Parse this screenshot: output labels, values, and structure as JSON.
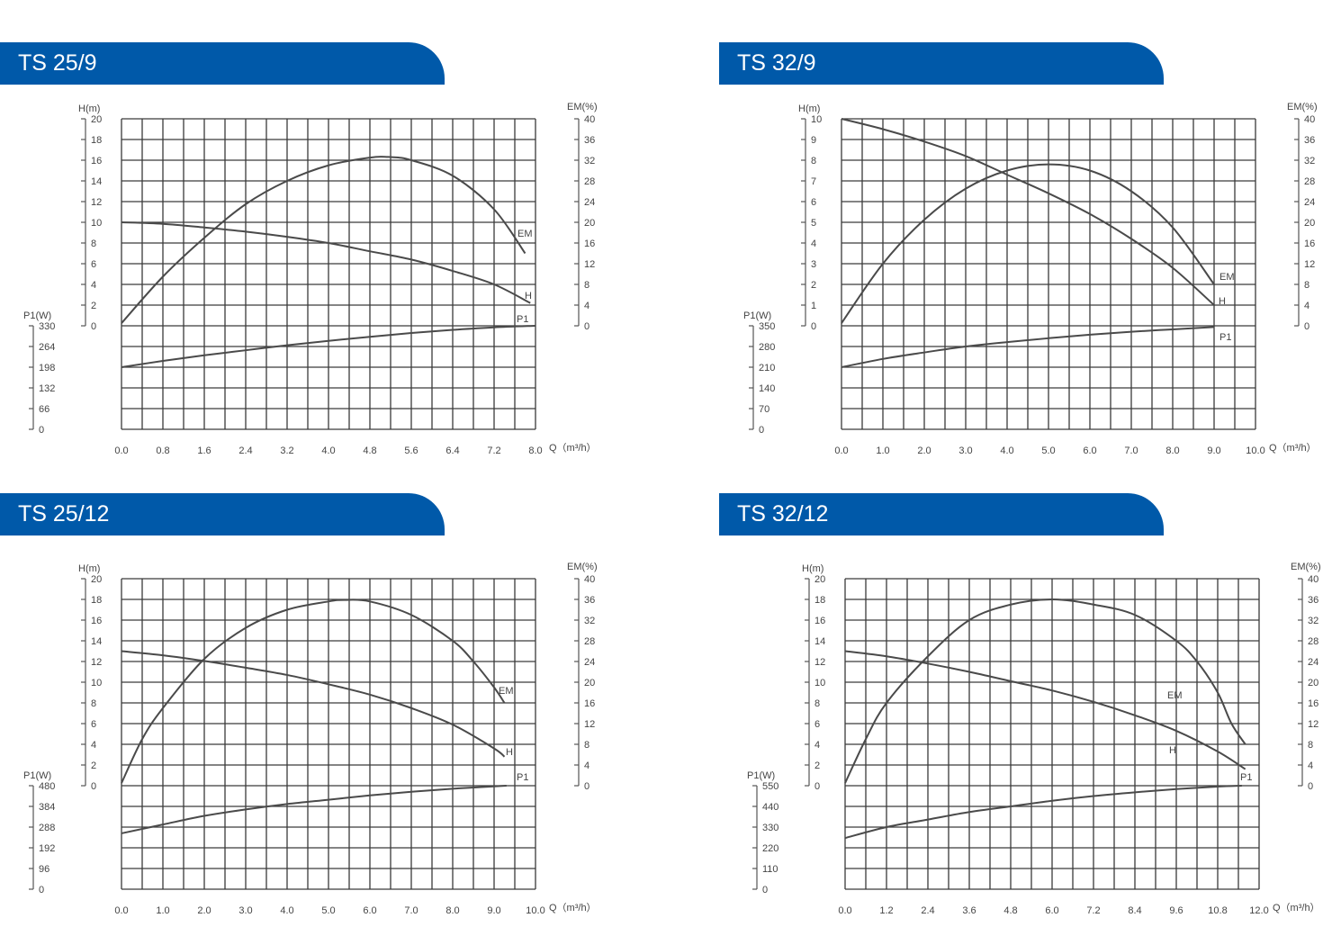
{
  "chart_data": [
    {
      "type": "line",
      "title": "TS 25/9",
      "xlabel": "Q（m³/h）",
      "xlim": [
        0,
        8
      ],
      "x_ticks": [
        "0.0",
        "0.8",
        "1.6",
        "2.4",
        "3.2",
        "4.0",
        "4.8",
        "5.6",
        "6.4",
        "7.2",
        "8.0"
      ],
      "axes": {
        "H": {
          "label": "H(m)",
          "range": [
            0,
            20
          ],
          "ticks": [
            "20",
            "18",
            "16",
            "14",
            "12",
            "10",
            "8",
            "6",
            "4",
            "2",
            "0"
          ]
        },
        "EM": {
          "label": "EM(%)",
          "range": [
            0,
            40
          ],
          "ticks": [
            "40",
            "36",
            "32",
            "28",
            "24",
            "20",
            "16",
            "12",
            "8",
            "4",
            "0"
          ]
        },
        "P1": {
          "label": "P1(W)",
          "range": [
            0,
            330
          ],
          "ticks": [
            "330",
            "264",
            "198",
            "132",
            "66",
            "0"
          ]
        }
      },
      "grid": true,
      "series": [
        {
          "name": "H",
          "axis": "H",
          "points": [
            [
              0,
              10
            ],
            [
              0.8,
              9.85
            ],
            [
              1.6,
              9.5
            ],
            [
              2.4,
              9.1
            ],
            [
              3.2,
              8.6
            ],
            [
              4.0,
              8.0
            ],
            [
              4.8,
              7.2
            ],
            [
              5.6,
              6.4
            ],
            [
              6.4,
              5.3
            ],
            [
              7.2,
              4.0
            ],
            [
              7.9,
              2.2
            ]
          ]
        },
        {
          "name": "EM",
          "axis": "EM",
          "points": [
            [
              0,
              0.5
            ],
            [
              0.8,
              9.5
            ],
            [
              1.6,
              17
            ],
            [
              2.4,
              23.5
            ],
            [
              3.2,
              28
            ],
            [
              4.0,
              31
            ],
            [
              4.8,
              32.5
            ],
            [
              5.2,
              32.6
            ],
            [
              5.6,
              32
            ],
            [
              6.4,
              29
            ],
            [
              7.2,
              22.5
            ],
            [
              7.8,
              14
            ]
          ]
        },
        {
          "name": "P1",
          "axis": "P1",
          "points": [
            [
              0,
              198
            ],
            [
              0.8,
              218
            ],
            [
              1.6,
              236
            ],
            [
              2.4,
              252
            ],
            [
              3.2,
              268
            ],
            [
              4.0,
              282
            ],
            [
              4.8,
              295
            ],
            [
              5.6,
              307
            ],
            [
              6.4,
              317
            ],
            [
              7.2,
              325
            ],
            [
              8.0,
              330
            ]
          ]
        }
      ]
    },
    {
      "type": "line",
      "title": "TS 32/9",
      "xlabel": "Q（m³/h）",
      "xlim": [
        0,
        10
      ],
      "x_ticks": [
        "0.0",
        "1.0",
        "2.0",
        "3.0",
        "4.0",
        "5.0",
        "6.0",
        "7.0",
        "8.0",
        "9.0",
        "10.0"
      ],
      "axes": {
        "H": {
          "label": "H(m)",
          "range": [
            0,
            10
          ],
          "ticks": [
            "10",
            "9",
            "8",
            "7",
            "6",
            "5",
            "4",
            "3",
            "2",
            "1",
            "0"
          ]
        },
        "EM": {
          "label": "EM(%)",
          "range": [
            0,
            40
          ],
          "ticks": [
            "40",
            "36",
            "32",
            "28",
            "24",
            "20",
            "16",
            "12",
            "8",
            "4",
            "0"
          ]
        },
        "P1": {
          "label": "P1(W)",
          "range": [
            0,
            350
          ],
          "ticks": [
            "350",
            "280",
            "210",
            "140",
            "70",
            "0"
          ]
        }
      },
      "grid": true,
      "series": [
        {
          "name": "H",
          "axis": "H",
          "points": [
            [
              0,
              10
            ],
            [
              1,
              9.5
            ],
            [
              2,
              8.9
            ],
            [
              3,
              8.2
            ],
            [
              4,
              7.3
            ],
            [
              5,
              6.4
            ],
            [
              6,
              5.4
            ],
            [
              7,
              4.2
            ],
            [
              8,
              2.8
            ],
            [
              9,
              1
            ]
          ]
        },
        {
          "name": "EM",
          "axis": "EM",
          "points": [
            [
              0,
              0.5
            ],
            [
              1,
              12
            ],
            [
              2,
              20.5
            ],
            [
              3,
              26.5
            ],
            [
              4,
              30
            ],
            [
              5,
              31.2
            ],
            [
              6,
              30
            ],
            [
              7,
              26
            ],
            [
              8,
              19
            ],
            [
              9,
              8
            ]
          ]
        },
        {
          "name": "P1",
          "axis": "P1",
          "points": [
            [
              0,
              210
            ],
            [
              1,
              238
            ],
            [
              2,
              260
            ],
            [
              3,
              280
            ],
            [
              4,
              295
            ],
            [
              5,
              308
            ],
            [
              6,
              320
            ],
            [
              7,
              330
            ],
            [
              8,
              338
            ],
            [
              9,
              346
            ]
          ]
        }
      ]
    },
    {
      "type": "line",
      "title": "TS 25/12",
      "xlabel": "Q（m³/h）",
      "xlim": [
        0,
        10
      ],
      "x_ticks": [
        "0.0",
        "1.0",
        "2.0",
        "3.0",
        "4.0",
        "5.0",
        "6.0",
        "7.0",
        "8.0",
        "9.0",
        "10.0"
      ],
      "axes": {
        "H": {
          "label": "H(m)",
          "range": [
            0,
            20
          ],
          "ticks": [
            "20",
            "18",
            "16",
            "14",
            "12",
            "10",
            "8",
            "6",
            "4",
            "2",
            "0"
          ]
        },
        "EM": {
          "label": "EM(%)",
          "range": [
            0,
            40
          ],
          "ticks": [
            "40",
            "36",
            "32",
            "28",
            "24",
            "20",
            "16",
            "12",
            "8",
            "4",
            "0"
          ]
        },
        "P1": {
          "label": "P1(W)",
          "range": [
            0,
            480
          ],
          "ticks": [
            "480",
            "384",
            "288",
            "192",
            "96",
            "0"
          ]
        }
      },
      "grid": true,
      "series": [
        {
          "name": "H",
          "axis": "H",
          "points": [
            [
              0,
              13
            ],
            [
              1,
              12.6
            ],
            [
              2,
              12.05
            ],
            [
              3,
              11.4
            ],
            [
              4,
              10.7
            ],
            [
              5,
              9.8
            ],
            [
              6,
              8.8
            ],
            [
              7,
              7.5
            ],
            [
              8,
              5.9
            ],
            [
              9,
              3.6
            ],
            [
              9.25,
              2.8
            ]
          ]
        },
        {
          "name": "EM",
          "axis": "EM",
          "points": [
            [
              0,
              0.5
            ],
            [
              0.5,
              9
            ],
            [
              1,
              15
            ],
            [
              2,
              24.5
            ],
            [
              3,
              30.5
            ],
            [
              4,
              34
            ],
            [
              5,
              35.6
            ],
            [
              5.4,
              35.9
            ],
            [
              6,
              35.6
            ],
            [
              7,
              33
            ],
            [
              8,
              28
            ],
            [
              8.5,
              24
            ],
            [
              9,
              19
            ],
            [
              9.25,
              16
            ]
          ]
        },
        {
          "name": "P1",
          "axis": "P1",
          "points": [
            [
              0,
              259
            ],
            [
              1,
              300
            ],
            [
              2,
              340
            ],
            [
              3,
              370
            ],
            [
              4,
              395
            ],
            [
              5,
              415
            ],
            [
              6,
              435
            ],
            [
              7,
              452
            ],
            [
              8,
              466
            ],
            [
              9,
              477
            ],
            [
              9.3,
              480
            ]
          ]
        }
      ]
    },
    {
      "type": "line",
      "title": "TS 32/12",
      "xlabel": "Q（m³/h）",
      "xlim": [
        0,
        12
      ],
      "x_ticks": [
        "0.0",
        "1.2",
        "2.4",
        "3.6",
        "4.8",
        "6.0",
        "7.2",
        "8.4",
        "9.6",
        "10.8",
        "12.0"
      ],
      "axes": {
        "H": {
          "label": "H(m)",
          "range": [
            0,
            20
          ],
          "ticks": [
            "20",
            "18",
            "16",
            "14",
            "12",
            "10",
            "8",
            "6",
            "4",
            "2",
            "0"
          ]
        },
        "EM": {
          "label": "EM(%)",
          "range": [
            0,
            40
          ],
          "ticks": [
            "40",
            "36",
            "32",
            "28",
            "24",
            "20",
            "16",
            "12",
            "8",
            "4",
            "0"
          ]
        },
        "P1": {
          "label": "P1(W)",
          "range": [
            0,
            550
          ],
          "ticks": [
            "550",
            "440",
            "330",
            "220",
            "110",
            "0"
          ]
        }
      },
      "grid": true,
      "series": [
        {
          "name": "H",
          "axis": "H",
          "points": [
            [
              0,
              13
            ],
            [
              1.2,
              12.5
            ],
            [
              2.4,
              11.8
            ],
            [
              3.6,
              11
            ],
            [
              4.8,
              10.1
            ],
            [
              6,
              9.2
            ],
            [
              7.2,
              8.1
            ],
            [
              8.4,
              6.8
            ],
            [
              9.6,
              5.3
            ],
            [
              10.8,
              3.3
            ],
            [
              11.6,
              1.6
            ]
          ]
        },
        {
          "name": "EM",
          "axis": "EM",
          "points": [
            [
              0,
              0.5
            ],
            [
              0.6,
              9
            ],
            [
              1.2,
              16
            ],
            [
              2.4,
              25
            ],
            [
              3.6,
              32
            ],
            [
              4.8,
              35
            ],
            [
              6,
              36
            ],
            [
              7.2,
              35
            ],
            [
              8.4,
              33
            ],
            [
              9.6,
              28
            ],
            [
              10.2,
              24
            ],
            [
              10.8,
              18
            ],
            [
              11.2,
              12
            ],
            [
              11.6,
              8
            ]
          ]
        },
        {
          "name": "P1",
          "axis": "P1",
          "points": [
            [
              0,
              272
            ],
            [
              1.2,
              330
            ],
            [
              2.4,
              370
            ],
            [
              3.6,
              410
            ],
            [
              4.8,
              440
            ],
            [
              6,
              470
            ],
            [
              7.2,
              495
            ],
            [
              8.4,
              515
            ],
            [
              9.6,
              532
            ],
            [
              10.8,
              545
            ],
            [
              11.5,
              550
            ]
          ]
        }
      ]
    }
  ]
}
